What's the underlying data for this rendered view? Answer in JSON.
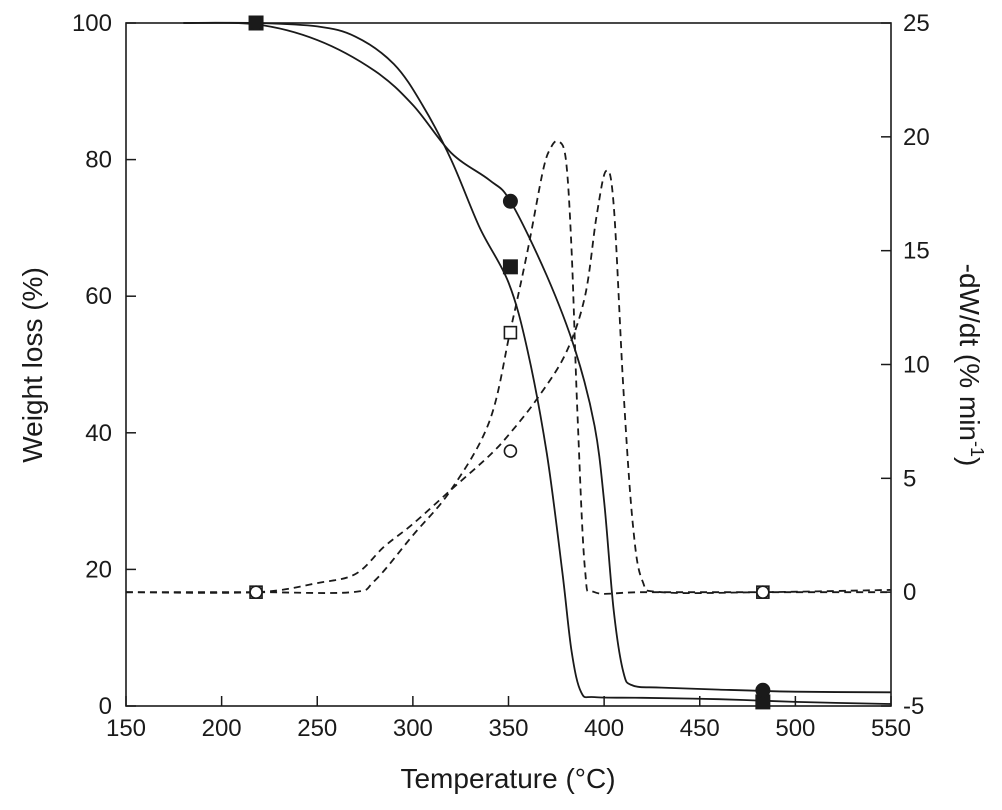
{
  "chart_data": {
    "type": "line",
    "xlabel": "Temperature (°C)",
    "ylabel_left": "Weight loss (%)",
    "ylabel_right_main": "-dW/dt (% min",
    "ylabel_right_sup": "-1",
    "ylabel_right_close": ")",
    "xlim": [
      150,
      550
    ],
    "ylim_left": [
      0,
      100
    ],
    "ylim_right": [
      -5,
      25
    ],
    "x_ticks": [
      150,
      200,
      250,
      300,
      350,
      400,
      450,
      500,
      550
    ],
    "y_left_ticks": [
      0,
      20,
      40,
      60,
      80,
      100
    ],
    "y_right_ticks": [
      -5,
      0,
      5,
      10,
      15,
      20,
      25
    ],
    "grid": false,
    "colors": {
      "line": "#1a1a1a",
      "background": "#ffffff"
    },
    "series": [
      {
        "marker": "filled-square",
        "style": "solid",
        "axis": "left",
        "x": [
          180,
          218,
          250,
          270,
          290,
          305,
          320,
          335,
          350,
          360,
          370,
          378,
          383,
          388,
          395,
          420,
          460,
          500,
          550
        ],
        "y": [
          100,
          100,
          99.5,
          98,
          94,
          88,
          80,
          70,
          62,
          52,
          37,
          20,
          8,
          2,
          1.3,
          1.2,
          1.0,
          0.6,
          0.3
        ],
        "markers_x": [
          218,
          351,
          483
        ],
        "markers_y": [
          100,
          64.3,
          0.6
        ]
      },
      {
        "marker": "filled-circle",
        "style": "solid",
        "axis": "left",
        "x": [
          180,
          218,
          250,
          280,
          300,
          320,
          340,
          351,
          370,
          385,
          395,
          400,
          405,
          410,
          415,
          430,
          460,
          500,
          550
        ],
        "y": [
          100,
          99.8,
          97.5,
          93,
          88,
          81,
          77,
          73.9,
          63,
          52,
          41,
          30,
          14,
          5,
          3,
          2.7,
          2.4,
          2.1,
          2.0
        ],
        "markers_x": [
          218,
          351,
          483
        ],
        "markers_y": [
          100,
          73.9,
          2.3
        ]
      },
      {
        "marker": "open-square",
        "style": "dashed",
        "axis": "right",
        "x": [
          150,
          218,
          268,
          280,
          300,
          320,
          340,
          351,
          360,
          368,
          372,
          376,
          380,
          383,
          386,
          390,
          395,
          420,
          483,
          550
        ],
        "y": [
          0,
          0,
          0,
          0.5,
          2.5,
          4.5,
          7.5,
          11.5,
          15,
          18.5,
          19.5,
          19.8,
          19.0,
          15,
          8,
          1,
          0,
          0,
          0,
          0
        ],
        "markers_x": [
          218,
          351,
          483
        ],
        "markers_y": [
          0,
          11.4,
          0
        ]
      },
      {
        "marker": "open-circle",
        "style": "dashed",
        "axis": "right",
        "x": [
          150,
          218,
          250,
          270,
          285,
          300,
          320,
          340,
          351,
          365,
          380,
          390,
          396,
          401,
          405,
          410,
          415,
          420,
          430,
          483,
          550
        ],
        "y": [
          0,
          0,
          0.4,
          0.8,
          2,
          3.0,
          4.5,
          6.0,
          7.0,
          8.5,
          10.5,
          13,
          16.5,
          18.5,
          17,
          9,
          3,
          0.5,
          0,
          0,
          0.1
        ],
        "markers_x": [
          218,
          351,
          483
        ],
        "markers_y": [
          0,
          6.2,
          0
        ]
      }
    ]
  }
}
